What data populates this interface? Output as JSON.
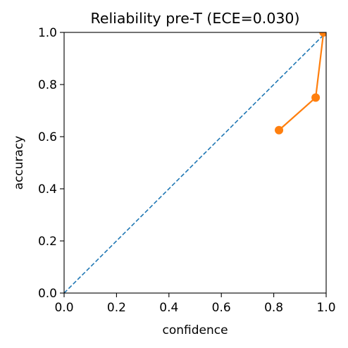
{
  "chart_data": {
    "type": "line",
    "title": "Reliability pre-T (ECE=0.030)",
    "xlabel": "confidence",
    "ylabel": "accuracy",
    "xlim": [
      0.0,
      1.0
    ],
    "ylim": [
      0.0,
      1.0
    ],
    "xticks": [
      "0.0",
      "0.2",
      "0.4",
      "0.6",
      "0.8",
      "1.0"
    ],
    "yticks": [
      "0.0",
      "0.2",
      "0.4",
      "0.6",
      "0.8",
      "1.0"
    ],
    "grid": false,
    "series": [
      {
        "role": "perfect-calibration-reference",
        "style": "dashed",
        "color": "#1f77b4",
        "x": [
          0.0,
          1.0
        ],
        "y": [
          0.0,
          1.0
        ]
      },
      {
        "role": "reliability-curve",
        "style": "line-with-markers",
        "color": "#ff7f0e",
        "x": [
          0.82,
          0.96,
          0.99
        ],
        "y": [
          0.625,
          0.75,
          1.0
        ]
      }
    ]
  }
}
